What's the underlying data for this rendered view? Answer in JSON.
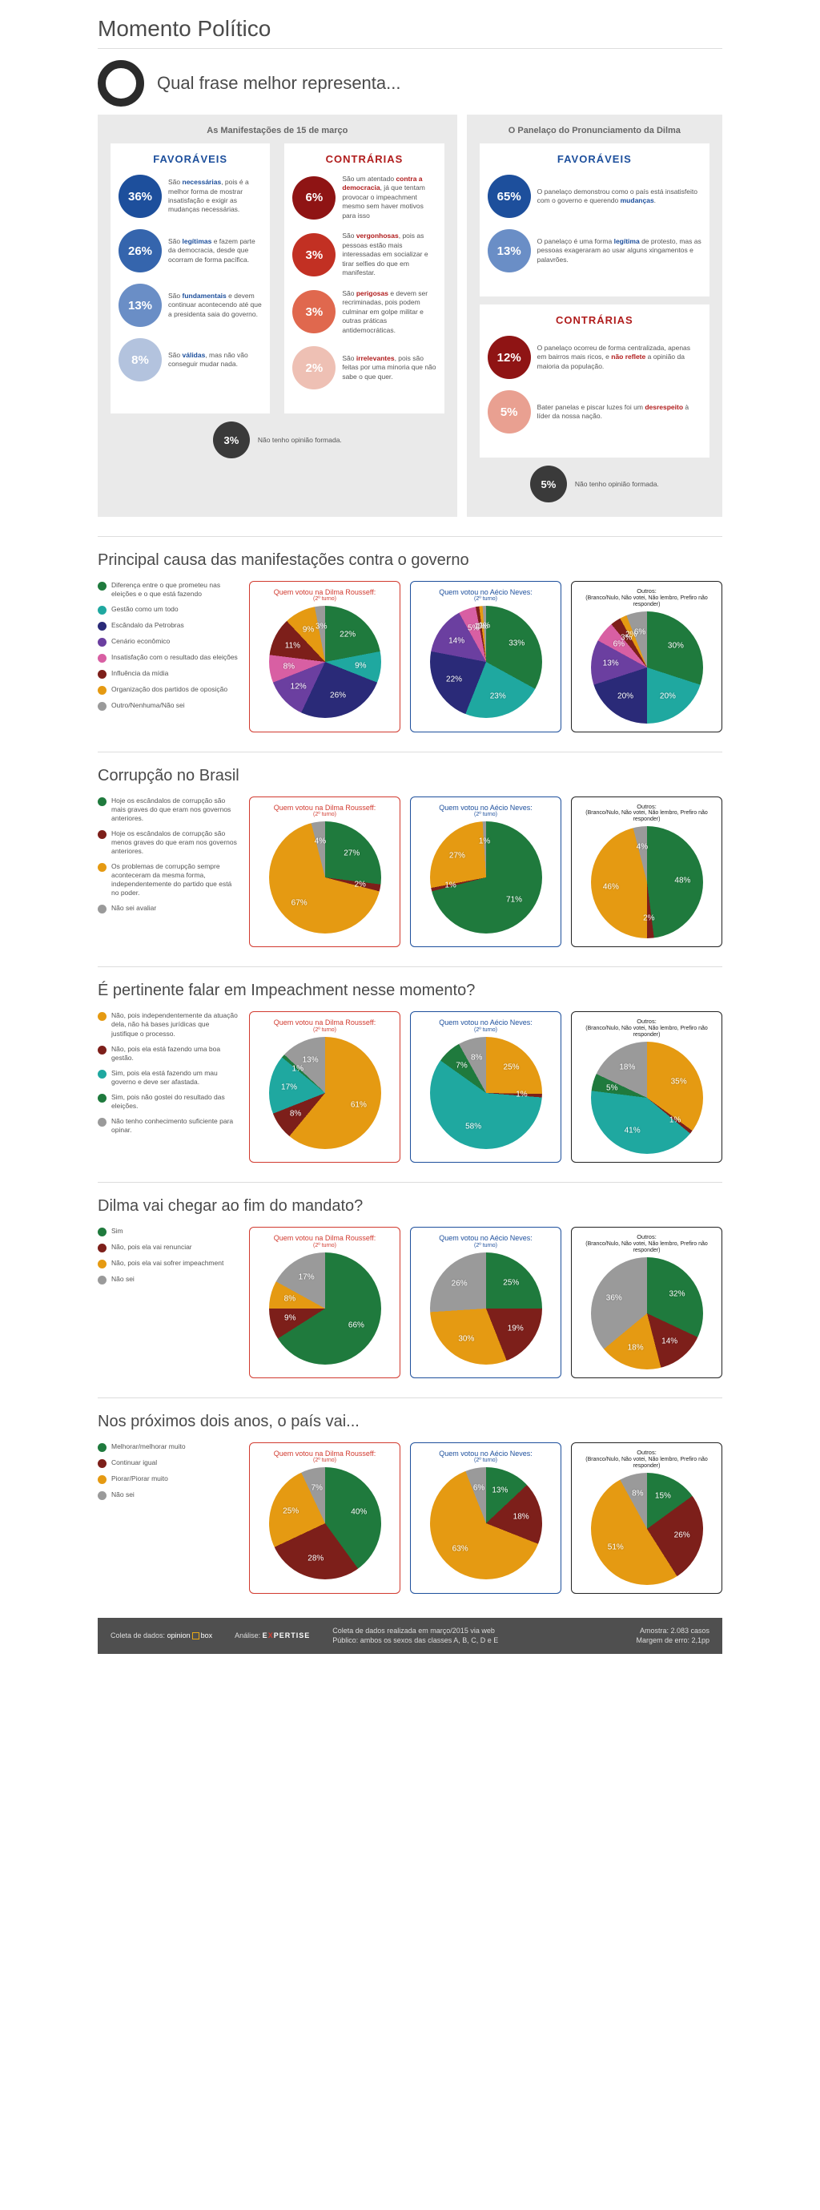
{
  "title": "Momento Político",
  "intro": "Qual frase melhor representa...",
  "panels": {
    "left": {
      "title": "As Manifestações de 15 de março",
      "fav_head": "FAVORÁVEIS",
      "con_head": "CONTRÁRIAS",
      "fav": [
        {
          "pct": "36%",
          "color": "#1d4f9c",
          "html": "São <b>necessárias</b>, pois é a melhor forma de mostrar insatisfação e exigir as mudanças necessárias."
        },
        {
          "pct": "26%",
          "color": "#3565ad",
          "html": "São <b>legítimas</b> e fazem parte da democracia, desde que ocorram de forma pacífica."
        },
        {
          "pct": "13%",
          "color": "#6a8ec6",
          "html": "São <b>fundamentais</b> e devem continuar acontecendo até que a presidenta saia do governo."
        },
        {
          "pct": "8%",
          "color": "#b3c3de",
          "html": "São <b>válidas</b>, mas não vão conseguir mudar nada."
        }
      ],
      "con": [
        {
          "pct": "6%",
          "color": "#8f1414",
          "html": "São um atentado <b>contra a democracia</b>, já que tentam provocar o impeachment mesmo sem haver motivos para isso"
        },
        {
          "pct": "3%",
          "color": "#c23023",
          "html": "São <b>vergonhosas</b>, pois as pessoas estão mais interessadas em socializar e tirar selfies do que em manifestar."
        },
        {
          "pct": "3%",
          "color": "#e0684e",
          "html": "São <b>perigosas</b> e devem ser recriminadas, pois podem culminar em golpe militar e outras práticas antidemocráticas."
        },
        {
          "pct": "2%",
          "color": "#eec0b4",
          "html": "São <b>irrelevantes</b>, pois são feitas por uma minoria que não sabe o que quer."
        }
      ],
      "none": {
        "pct": "3%",
        "text": "Não tenho opinião formada."
      }
    },
    "right": {
      "title": "O Panelaço do Pronunciamento da Dilma",
      "fav_head": "FAVORÁVEIS",
      "con_head": "CONTRÁRIAS",
      "fav": [
        {
          "pct": "65%",
          "color": "#1d4f9c",
          "html": "O panelaço demonstrou como o país está insatisfeito com o governo e querendo <b>mudanças</b>."
        },
        {
          "pct": "13%",
          "color": "#6a8ec6",
          "html": "O panelaço é uma forma <b>legítima</b> de protesto, mas as pessoas exageraram ao usar alguns xingamentos e palavrões."
        }
      ],
      "con": [
        {
          "pct": "12%",
          "color": "#8f1414",
          "html": "O panelaço ocorreu de forma centralizada, apenas em bairros mais ricos, e <b>não reflete</b> a opinião da maioria da população."
        },
        {
          "pct": "5%",
          "color": "#e9a091",
          "html": "Bater panelas e piscar luzes foi um <b>desrespeito</b> à líder da nossa nação."
        }
      ],
      "none": {
        "pct": "5%",
        "text": "Não tenho opinião formada."
      }
    }
  },
  "pieTitles": {
    "dilma": "Quem votou na Dilma Rousseff:",
    "aecio": "Quem votou no Aécio Neves:",
    "outros": "Outros:",
    "outros_sub": "(Branco/Nulo, Não votei, Não lembro, Prefiro não responder)",
    "turno": "(2º turno)"
  },
  "sections": [
    {
      "title": "Principal causa das manifestações contra o governo",
      "legend": [
        {
          "c": "#1f7a3d",
          "t": "Diferença entre o que prometeu nas eleições e o que está fazendo"
        },
        {
          "c": "#1fa8a0",
          "t": "Gestão como um todo"
        },
        {
          "c": "#2a2a78",
          "t": "Escândalo da Petrobras"
        },
        {
          "c": "#6b3fa0",
          "t": "Cenário econômico"
        },
        {
          "c": "#d85fa3",
          "t": "Insatisfação com o resultado das eleições"
        },
        {
          "c": "#7d1f1a",
          "t": "Influência da mídia"
        },
        {
          "c": "#e59a12",
          "t": "Organização dos partidos de oposição"
        },
        {
          "c": "#9a9a9a",
          "t": "Outro/Nenhuma/Não sei"
        }
      ],
      "pies": [
        {
          "style": "red",
          "data": [
            {
              "c": "#1f7a3d",
              "v": 22
            },
            {
              "c": "#1fa8a0",
              "v": 9
            },
            {
              "c": "#2a2a78",
              "v": 26
            },
            {
              "c": "#6b3fa0",
              "v": 12
            },
            {
              "c": "#d85fa3",
              "v": 8
            },
            {
              "c": "#7d1f1a",
              "v": 11
            },
            {
              "c": "#e59a12",
              "v": 9
            },
            {
              "c": "#9a9a9a",
              "v": 3
            }
          ]
        },
        {
          "style": "blue",
          "data": [
            {
              "c": "#1f7a3d",
              "v": 33
            },
            {
              "c": "#1fa8a0",
              "v": 23
            },
            {
              "c": "#2a2a78",
              "v": 22
            },
            {
              "c": "#6b3fa0",
              "v": 14
            },
            {
              "c": "#d85fa3",
              "v": 5
            },
            {
              "c": "#7d1f1a",
              "v": 1
            },
            {
              "c": "#e59a12",
              "v": 1
            },
            {
              "c": "#9a9a9a",
              "v": 1
            }
          ]
        },
        {
          "style": "black",
          "data": [
            {
              "c": "#1f7a3d",
              "v": 30
            },
            {
              "c": "#1fa8a0",
              "v": 20
            },
            {
              "c": "#2a2a78",
              "v": 20
            },
            {
              "c": "#6b3fa0",
              "v": 13
            },
            {
              "c": "#d85fa3",
              "v": 6
            },
            {
              "c": "#7d1f1a",
              "v": 3
            },
            {
              "c": "#e59a12",
              "v": 2
            },
            {
              "c": "#9a9a9a",
              "v": 6
            }
          ]
        }
      ]
    },
    {
      "title": "Corrupção no Brasil",
      "legend": [
        {
          "c": "#1f7a3d",
          "t": "Hoje os escândalos de corrupção são mais graves do que eram nos governos anteriores."
        },
        {
          "c": "#7d1f1a",
          "t": "Hoje os escândalos de corrupção são menos graves do que eram nos governos anteriores."
        },
        {
          "c": "#e59a12",
          "t": "Os problemas de corrupção sempre aconteceram da mesma forma, independentemente do partido que está no poder."
        },
        {
          "c": "#9a9a9a",
          "t": "Não sei avaliar"
        }
      ],
      "pies": [
        {
          "style": "red",
          "data": [
            {
              "c": "#1f7a3d",
              "v": 27
            },
            {
              "c": "#7d1f1a",
              "v": 2
            },
            {
              "c": "#e59a12",
              "v": 67
            },
            {
              "c": "#9a9a9a",
              "v": 4
            }
          ]
        },
        {
          "style": "blue",
          "data": [
            {
              "c": "#1f7a3d",
              "v": 71
            },
            {
              "c": "#7d1f1a",
              "v": 1
            },
            {
              "c": "#e59a12",
              "v": 27
            },
            {
              "c": "#9a9a9a",
              "v": 1
            }
          ]
        },
        {
          "style": "black",
          "data": [
            {
              "c": "#1f7a3d",
              "v": 48
            },
            {
              "c": "#7d1f1a",
              "v": 2
            },
            {
              "c": "#e59a12",
              "v": 46
            },
            {
              "c": "#9a9a9a",
              "v": 4
            }
          ]
        }
      ]
    },
    {
      "title": "É pertinente falar em Impeachment nesse momento?",
      "legend": [
        {
          "c": "#e59a12",
          "t": "Não, pois independentemente da atuação dela, não há bases jurídicas que justifique o processo."
        },
        {
          "c": "#7d1f1a",
          "t": "Não, pois ela está fazendo uma boa gestão."
        },
        {
          "c": "#1fa8a0",
          "t": "Sim, pois ela está fazendo um mau governo e deve ser afastada."
        },
        {
          "c": "#1f7a3d",
          "t": "Sim, pois não gostei do resultado das eleições."
        },
        {
          "c": "#9a9a9a",
          "t": "Não tenho conhecimento suficiente para opinar."
        }
      ],
      "pies": [
        {
          "style": "red",
          "data": [
            {
              "c": "#e59a12",
              "v": 61
            },
            {
              "c": "#7d1f1a",
              "v": 8
            },
            {
              "c": "#1fa8a0",
              "v": 17
            },
            {
              "c": "#1f7a3d",
              "v": 1
            },
            {
              "c": "#9a9a9a",
              "v": 13
            }
          ]
        },
        {
          "style": "blue",
          "data": [
            {
              "c": "#e59a12",
              "v": 25
            },
            {
              "c": "#7d1f1a",
              "v": 1
            },
            {
              "c": "#1fa8a0",
              "v": 58
            },
            {
              "c": "#1f7a3d",
              "v": 7
            },
            {
              "c": "#9a9a9a",
              "v": 8
            }
          ]
        },
        {
          "style": "black",
          "data": [
            {
              "c": "#e59a12",
              "v": 35
            },
            {
              "c": "#7d1f1a",
              "v": 1
            },
            {
              "c": "#1fa8a0",
              "v": 41
            },
            {
              "c": "#1f7a3d",
              "v": 5
            },
            {
              "c": "#9a9a9a",
              "v": 18
            }
          ]
        }
      ]
    },
    {
      "title": "Dilma vai chegar ao fim do mandato?",
      "legend": [
        {
          "c": "#1f7a3d",
          "t": "Sim"
        },
        {
          "c": "#7d1f1a",
          "t": "Não, pois ela vai renunciar"
        },
        {
          "c": "#e59a12",
          "t": "Não, pois ela vai sofrer impeachment"
        },
        {
          "c": "#9a9a9a",
          "t": "Não sei"
        }
      ],
      "pies": [
        {
          "style": "red",
          "data": [
            {
              "c": "#1f7a3d",
              "v": 66
            },
            {
              "c": "#7d1f1a",
              "v": 9
            },
            {
              "c": "#e59a12",
              "v": 8
            },
            {
              "c": "#9a9a9a",
              "v": 17
            }
          ]
        },
        {
          "style": "blue",
          "data": [
            {
              "c": "#1f7a3d",
              "v": 25
            },
            {
              "c": "#7d1f1a",
              "v": 19
            },
            {
              "c": "#e59a12",
              "v": 30
            },
            {
              "c": "#9a9a9a",
              "v": 26
            }
          ]
        },
        {
          "style": "black",
          "data": [
            {
              "c": "#1f7a3d",
              "v": 32
            },
            {
              "c": "#7d1f1a",
              "v": 14
            },
            {
              "c": "#e59a12",
              "v": 18
            },
            {
              "c": "#9a9a9a",
              "v": 36
            }
          ]
        }
      ]
    },
    {
      "title": "Nos próximos dois anos, o país vai...",
      "legend": [
        {
          "c": "#1f7a3d",
          "t": "Melhorar/melhorar muito"
        },
        {
          "c": "#7d1f1a",
          "t": "Continuar igual"
        },
        {
          "c": "#e59a12",
          "t": "Piorar/Piorar muito"
        },
        {
          "c": "#9a9a9a",
          "t": "Não sei"
        }
      ],
      "pies": [
        {
          "style": "red",
          "data": [
            {
              "c": "#1f7a3d",
              "v": 40
            },
            {
              "c": "#7d1f1a",
              "v": 28
            },
            {
              "c": "#e59a12",
              "v": 25
            },
            {
              "c": "#9a9a9a",
              "v": 7
            }
          ]
        },
        {
          "style": "blue",
          "data": [
            {
              "c": "#1f7a3d",
              "v": 13
            },
            {
              "c": "#7d1f1a",
              "v": 18
            },
            {
              "c": "#e59a12",
              "v": 63
            },
            {
              "c": "#9a9a9a",
              "v": 6
            }
          ]
        },
        {
          "style": "black",
          "data": [
            {
              "c": "#1f7a3d",
              "v": 15
            },
            {
              "c": "#7d1f1a",
              "v": 26
            },
            {
              "c": "#e59a12",
              "v": 51
            },
            {
              "c": "#9a9a9a",
              "v": 8
            }
          ]
        }
      ]
    }
  ],
  "footer": {
    "coleta": "Coleta de dados:",
    "analise": "Análise:",
    "mid1": "Coleta de dados realizada em março/2015 via web",
    "mid2": "Público: ambos os sexos das classes A, B, C, D e E",
    "right1": "Amostra: 2.083 casos",
    "right2": "Margem de erro: 2,1pp"
  }
}
